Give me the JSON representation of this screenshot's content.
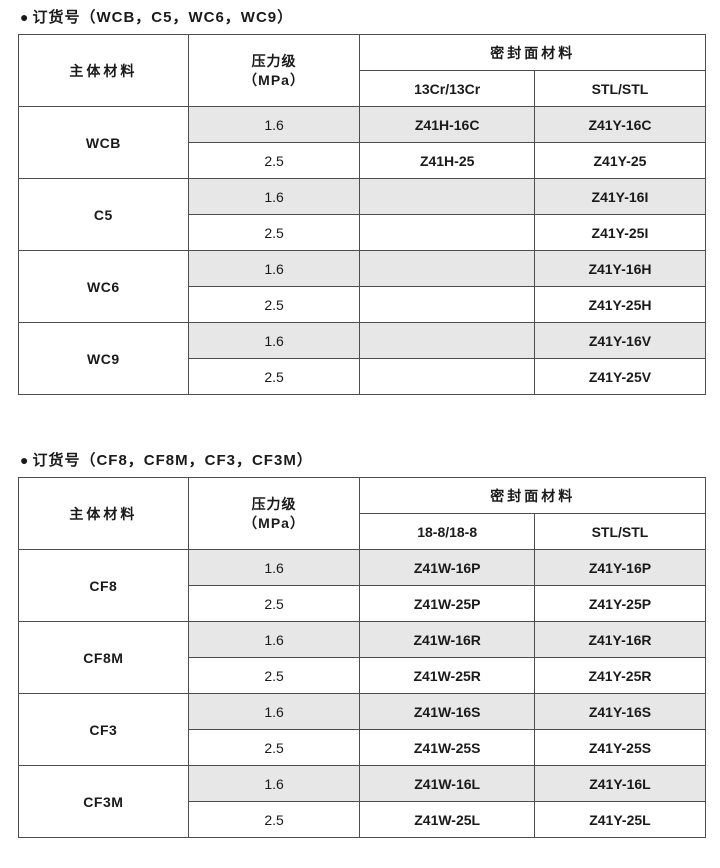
{
  "colors": {
    "row_shade": "#e7e7e7",
    "border": "#4d4d4d",
    "text": "#1a1a1a",
    "background": "#ffffff"
  },
  "tables": [
    {
      "bullet": "●",
      "title": "订货号（WCB，C5，WC6，WC9）",
      "header": {
        "material": "主体材料",
        "pressure_line1": "压力级",
        "pressure_line2": "（MPa）",
        "seal_group": "密封面材料",
        "seal_col1": "13Cr/13Cr",
        "seal_col2": "STL/STL"
      },
      "groups": [
        {
          "material": "WCB",
          "rows": [
            {
              "pressure": "1.6",
              "seal1": "Z41H-16C",
              "seal2": "Z41Y-16C"
            },
            {
              "pressure": "2.5",
              "seal1": "Z41H-25",
              "seal2": "Z41Y-25"
            }
          ]
        },
        {
          "material": "C5",
          "rows": [
            {
              "pressure": "1.6",
              "seal1": "",
              "seal2": "Z41Y-16I"
            },
            {
              "pressure": "2.5",
              "seal1": "",
              "seal2": "Z41Y-25I"
            }
          ]
        },
        {
          "material": "WC6",
          "rows": [
            {
              "pressure": "1.6",
              "seal1": "",
              "seal2": "Z41Y-16H"
            },
            {
              "pressure": "2.5",
              "seal1": "",
              "seal2": "Z41Y-25H"
            }
          ]
        },
        {
          "material": "WC9",
          "rows": [
            {
              "pressure": "1.6",
              "seal1": "",
              "seal2": "Z41Y-16V"
            },
            {
              "pressure": "2.5",
              "seal1": "",
              "seal2": "Z41Y-25V"
            }
          ]
        }
      ]
    },
    {
      "bullet": "●",
      "title": "订货号（CF8，CF8M，CF3，CF3M）",
      "header": {
        "material": "主体材料",
        "pressure_line1": "压力级",
        "pressure_line2": "（MPa）",
        "seal_group": "密封面材料",
        "seal_col1": "18-8/18-8",
        "seal_col2": "STL/STL"
      },
      "groups": [
        {
          "material": "CF8",
          "rows": [
            {
              "pressure": "1.6",
              "seal1": "Z41W-16P",
              "seal2": "Z41Y-16P"
            },
            {
              "pressure": "2.5",
              "seal1": "Z41W-25P",
              "seal2": "Z41Y-25P"
            }
          ]
        },
        {
          "material": "CF8M",
          "rows": [
            {
              "pressure": "1.6",
              "seal1": "Z41W-16R",
              "seal2": "Z41Y-16R"
            },
            {
              "pressure": "2.5",
              "seal1": "Z41W-25R",
              "seal2": "Z41Y-25R"
            }
          ]
        },
        {
          "material": "CF3",
          "rows": [
            {
              "pressure": "1.6",
              "seal1": "Z41W-16S",
              "seal2": "Z41Y-16S"
            },
            {
              "pressure": "2.5",
              "seal1": "Z41W-25S",
              "seal2": "Z41Y-25S"
            }
          ]
        },
        {
          "material": "CF3M",
          "rows": [
            {
              "pressure": "1.6",
              "seal1": "Z41W-16L",
              "seal2": "Z41Y-16L"
            },
            {
              "pressure": "2.5",
              "seal1": "Z41W-25L",
              "seal2": "Z41Y-25L"
            }
          ]
        }
      ]
    }
  ]
}
